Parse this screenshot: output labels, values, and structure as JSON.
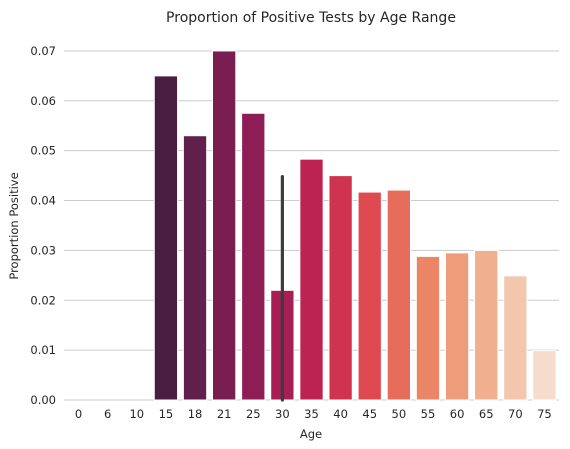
{
  "chart_data": {
    "type": "bar",
    "title": "Proportion of Positive Tests by Age Range",
    "xlabel": "Age",
    "ylabel": "Proportion Positive",
    "categories": [
      "0",
      "6",
      "10",
      "15",
      "18",
      "21",
      "25",
      "30",
      "35",
      "40",
      "45",
      "50",
      "55",
      "60",
      "65",
      "70",
      "75"
    ],
    "values": [
      0,
      0,
      0,
      0.065,
      0.053,
      0.07,
      0.0575,
      0.022,
      0.0483,
      0.045,
      0.0417,
      0.0421,
      0.0288,
      0.0295,
      0.03,
      0.0249,
      0.0099
    ],
    "error_bars": [
      {
        "category": "30",
        "low": 0.0,
        "high": 0.0448
      }
    ],
    "ylim": [
      0,
      0.074
    ],
    "yticks": [
      "0.00",
      "0.01",
      "0.02",
      "0.03",
      "0.04",
      "0.05",
      "0.06",
      "0.07"
    ],
    "grid": "horizontal",
    "bar_colors": [
      "#2a1636",
      "#2f1739",
      "#35193e",
      "#4a1e43",
      "#611f4b",
      "#781e51",
      "#8e1d55",
      "#a61e54",
      "#bd2350",
      "#d0334e",
      "#de4a4f",
      "#e66c5c",
      "#ea8666",
      "#ed9d79",
      "#f0b08f",
      "#f3c6ae",
      "#f6dccc"
    ],
    "error_color": "#3c3c3c",
    "grid_color": "#cccccc"
  }
}
